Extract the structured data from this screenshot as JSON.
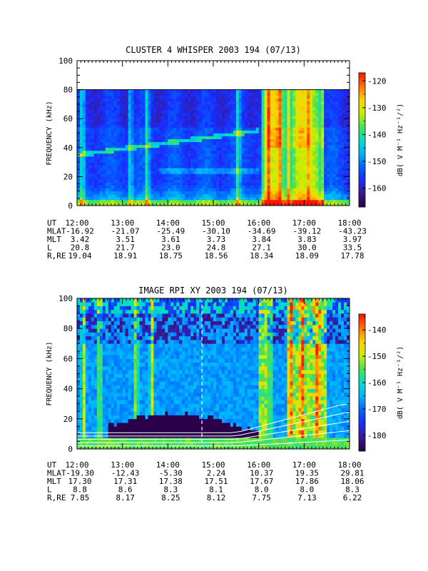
{
  "colorscale": [
    "#2a004a",
    "#3a1a8c",
    "#1a2cff",
    "#0066ff",
    "#00b4ff",
    "#00e0c0",
    "#50e050",
    "#c8f000",
    "#ffd000",
    "#ff7000",
    "#ff1500"
  ],
  "panels": [
    {
      "title": "CLUSTER 4 WHISPER 2003 194 (07/13)",
      "ylabel": "FREQUENCY (kHz)",
      "ylim": [
        0,
        100
      ],
      "yticks": [
        "0",
        "20",
        "40",
        "60",
        "80",
        "100"
      ],
      "xticks": [
        "12:00",
        "13:00",
        "14:00",
        "15:00",
        "16:00",
        "17:00",
        "18:00"
      ],
      "x_range_hours": [
        12,
        18
      ],
      "data_top_khz": 80,
      "colorbar_label": "dB( V M⁻¹ Hz⁻¹/²)",
      "colorbar_range": [
        -167,
        -117
      ],
      "colorbar_ticks": [
        "-120",
        "-130",
        "-140",
        "-150",
        "-160"
      ],
      "ephemeris": [
        {
          "label": "UT",
          "values": [
            "12:00",
            "13:00",
            "14:00",
            "15:00",
            "16:00",
            "17:00",
            "18:00"
          ]
        },
        {
          "label": "MLAT",
          "values": [
            "-16.92",
            "-21.07",
            "-25.49",
            "-30.10",
            "-34.69",
            "-39.12",
            "-43.23"
          ]
        },
        {
          "label": "MLT",
          "values": [
            "3.42",
            "3.51",
            "3.61",
            "3.73",
            "3.84",
            "3.83",
            "3.97"
          ]
        },
        {
          "label": "L",
          "values": [
            "20.8",
            "21.7",
            "23.0",
            "24.8",
            "27.1",
            "30.0",
            "33.5"
          ]
        },
        {
          "label": "R,RE",
          "values": [
            "19.04",
            "18.91",
            "18.75",
            "18.56",
            "18.34",
            "18.09",
            "17.78"
          ]
        }
      ]
    },
    {
      "title": "IMAGE RPI XY 2003 194 (07/13)",
      "ylabel": "FREQUENCY (kHz)",
      "ylim": [
        0,
        100
      ],
      "yticks": [
        "0",
        "20",
        "40",
        "60",
        "80",
        "100"
      ],
      "xticks": [
        "12:00",
        "13:00",
        "14:00",
        "15:00",
        "16:00",
        "17:00",
        "18:00"
      ],
      "x_range_hours": [
        12,
        18
      ],
      "data_top_khz": 100,
      "dashed_marker_hour": 14.75,
      "colorbar_label": "dB( V M⁻¹ Hz⁻¹/²)",
      "colorbar_range": [
        -186,
        -134
      ],
      "colorbar_ticks": [
        "-140",
        "-150",
        "-160",
        "-170",
        "-180"
      ],
      "ephemeris": [
        {
          "label": "UT",
          "values": [
            "12:00",
            "13:00",
            "14:00",
            "15:00",
            "16:00",
            "17:00",
            "18:00"
          ]
        },
        {
          "label": "MLAT",
          "values": [
            "-19.30",
            "-12.43",
            "-5.30",
            "2.24",
            "10.37",
            "19.35",
            "29.81"
          ]
        },
        {
          "label": "MLT",
          "values": [
            "17.30",
            "17.31",
            "17.38",
            "17.51",
            "17.67",
            "17.86",
            "18.06"
          ]
        },
        {
          "label": "L",
          "values": [
            "8.8",
            "8.6",
            "8.3",
            "8.1",
            "8.0",
            "8.0",
            "8.3"
          ]
        },
        {
          "label": "R,RE",
          "values": [
            "7.85",
            "8.17",
            "8.25",
            "8.12",
            "7.75",
            "7.13",
            "6.22"
          ]
        }
      ]
    }
  ],
  "chart_data": [
    {
      "type": "heatmap",
      "title": "CLUSTER 4 WHISPER 2003 194 (07/13)",
      "ylabel": "FREQUENCY (kHz)",
      "xticks": [
        "12:00",
        "13:00",
        "14:00",
        "15:00",
        "16:00",
        "17:00",
        "18:00"
      ],
      "ylim": [
        0,
        100
      ],
      "colorbar_range": [
        -167,
        -117
      ],
      "features": [
        {
          "kind": "broadband_burst_hours",
          "values": [
            12.12,
            13.18,
            13.55,
            15.55,
            16.2,
            16.45,
            16.65,
            17.12,
            17.25
          ]
        },
        {
          "kind": "strong_band_hours",
          "values": [
            16.05,
            17.45
          ]
        },
        {
          "kind": "low_freq_enhancement_khz",
          "values": [
            0,
            12
          ]
        }
      ]
    },
    {
      "type": "heatmap",
      "title": "IMAGE RPI XY 2003 194 (07/13)",
      "ylabel": "FREQUENCY (kHz)",
      "xticks": [
        "12:00",
        "13:00",
        "14:00",
        "15:00",
        "16:00",
        "17:00",
        "18:00"
      ],
      "ylim": [
        0,
        100
      ],
      "colorbar_range": [
        -186,
        -134
      ],
      "features": [
        {
          "kind": "broadband_burst_hours",
          "values": [
            12.15,
            12.5,
            13.3,
            13.65,
            16.25,
            16.7,
            16.95,
            17.3
          ]
        },
        {
          "kind": "strong_band_hours",
          "values": [
            16.05,
            17.45
          ]
        },
        {
          "kind": "dark_region_hours",
          "values": [
            12.7,
            16.0
          ]
        },
        {
          "kind": "dark_region_top_khz",
          "values": [
            22,
            25
          ]
        }
      ]
    }
  ]
}
